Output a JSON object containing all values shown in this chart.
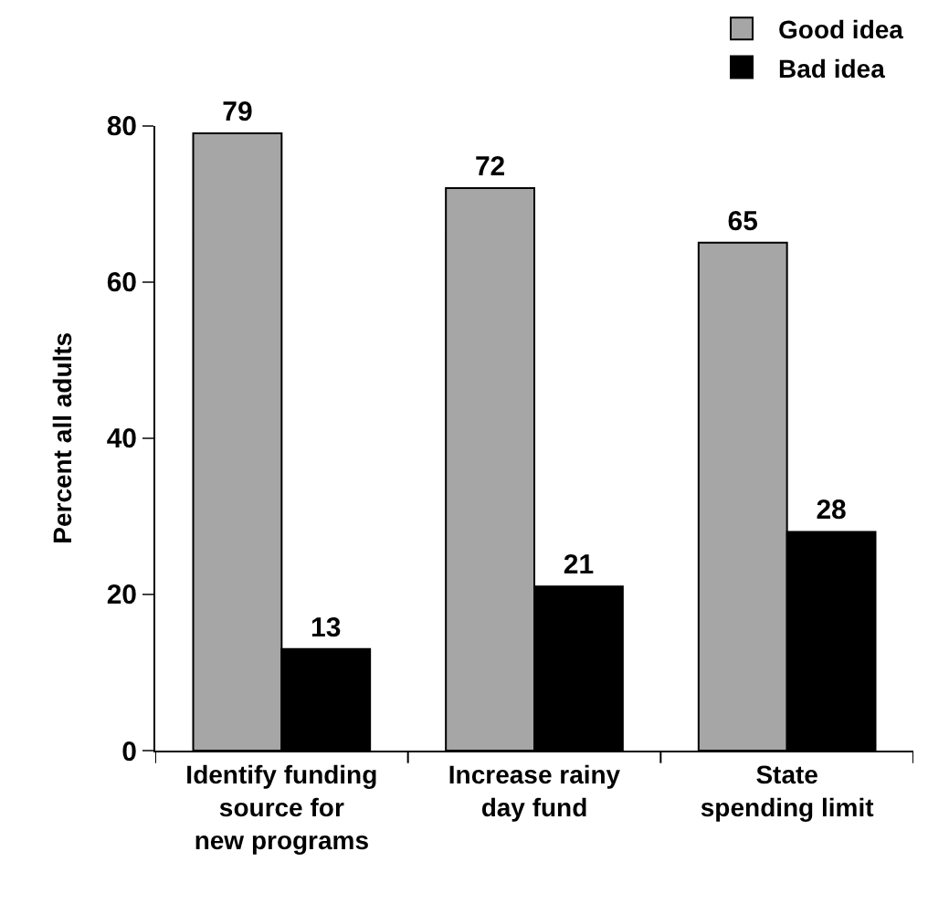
{
  "chart_data": {
    "type": "bar",
    "ylabel": "Percent all adults",
    "categories": [
      "Identify funding\nsource for\nnew programs",
      "Increase rainy\nday fund",
      "State\nspending limit"
    ],
    "series": [
      {
        "name": "Good idea",
        "color": "#a6a6a6",
        "values": [
          79,
          72,
          65
        ]
      },
      {
        "name": "Bad idea",
        "color": "#000000",
        "values": [
          13,
          21,
          28
        ]
      }
    ],
    "ylim": [
      0,
      80
    ],
    "yticks": [
      0,
      20,
      40,
      60,
      80
    ],
    "data_labels": true,
    "legend": "top right"
  }
}
